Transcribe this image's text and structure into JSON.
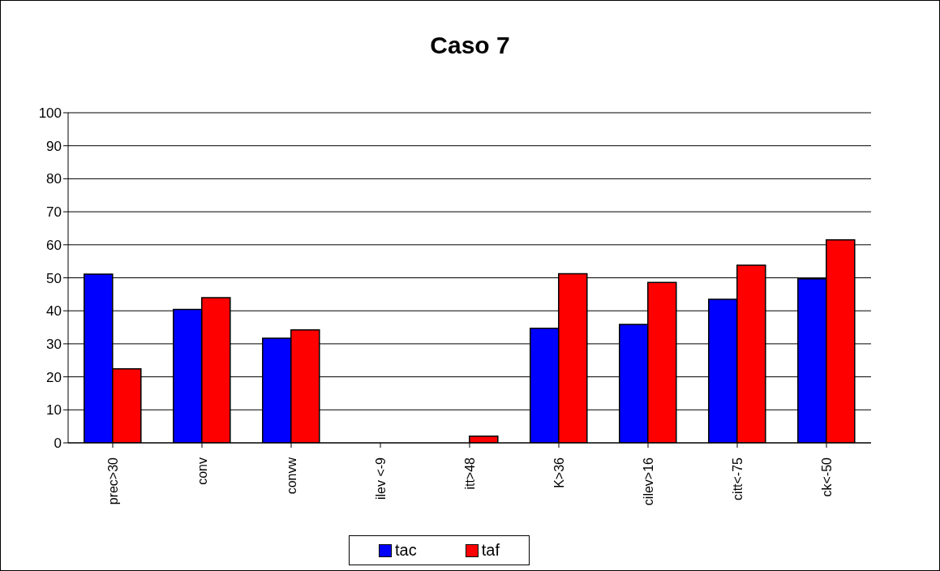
{
  "chart_data": {
    "type": "bar",
    "title": "Caso 7",
    "categories": [
      "prec>30",
      "conv",
      "convw",
      "ilev <-9",
      "itt>48",
      "K>36",
      "cilev>16",
      "citt<-75",
      "ck<-50"
    ],
    "series": [
      {
        "name": "tac",
        "color": "#0000ff",
        "values": [
          51.1,
          40.4,
          31.7,
          0,
          0,
          34.7,
          35.9,
          43.5,
          49.7
        ]
      },
      {
        "name": "taf",
        "color": "#ff0000",
        "values": [
          22.4,
          44.0,
          34.2,
          0,
          2.0,
          51.2,
          48.6,
          53.8,
          61.5
        ]
      }
    ],
    "ylim": [
      0,
      100
    ],
    "yticks": [
      0,
      10,
      20,
      30,
      40,
      50,
      60,
      70,
      80,
      90,
      100
    ],
    "grid": "y",
    "legend": "bottom"
  }
}
